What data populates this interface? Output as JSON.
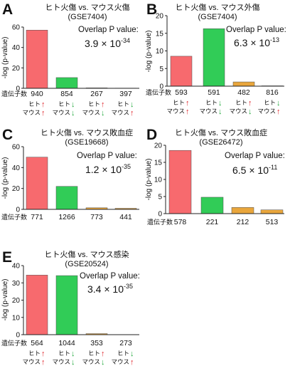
{
  "colors": {
    "bars": [
      "#f76a6e",
      "#31cc57",
      "#e9a63c",
      "#e9a63c"
    ],
    "bar_outline": "#4d4d4d",
    "axis": "#222222",
    "up_arrow": "#e0242a",
    "down_arrow": "#1fa83c"
  },
  "chart_data": [
    {
      "panel_label": "A",
      "type": "bar",
      "title": "ヒト火傷 vs. マウス火傷",
      "subtitle": "(GSE7404)",
      "ylabel": "-log (p-value)",
      "ylim": [
        0,
        60
      ],
      "yticks": [
        0,
        20,
        40,
        60
      ],
      "values": [
        57,
        10.5,
        0.4,
        0.2
      ],
      "xlabel": "遺伝子数",
      "categories": [
        "940",
        "854",
        "267",
        "397"
      ],
      "direction_labels": [
        {
          "human": "ヒト",
          "human_arrow": "↑",
          "mouse": "マウス",
          "mouse_arrow": "↑"
        },
        {
          "human": "ヒト",
          "human_arrow": "↓",
          "mouse": "マウス",
          "mouse_arrow": "↓"
        },
        {
          "human": "ヒト",
          "human_arrow": "↑",
          "mouse": "マウス",
          "mouse_arrow": "↓"
        },
        {
          "human": "ヒト",
          "human_arrow": "↓",
          "mouse": "マウス",
          "mouse_arrow": "↑"
        }
      ],
      "annotation": {
        "label": "Overlap P value:",
        "mantissa": "3.9 × 10",
        "exponent": "-34"
      },
      "grid": false
    },
    {
      "panel_label": "B",
      "type": "bar",
      "title": "ヒト火傷 vs. マウス外傷",
      "subtitle": "(GSE7404)",
      "ylabel": "-log (p-value)",
      "ylim": [
        0,
        20
      ],
      "yticks": [
        0,
        5,
        10,
        15,
        20
      ],
      "values": [
        8.5,
        16.3,
        1.2,
        0.1
      ],
      "xlabel": "遺伝子数",
      "categories": [
        "593",
        "591",
        "482",
        "816"
      ],
      "direction_labels": [
        {
          "human": "ヒト",
          "human_arrow": "↑",
          "mouse": "マウス",
          "mouse_arrow": "↑"
        },
        {
          "human": "ヒト",
          "human_arrow": "↓",
          "mouse": "マウス",
          "mouse_arrow": "↓"
        },
        {
          "human": "ヒト",
          "human_arrow": "↑",
          "mouse": "マウス",
          "mouse_arrow": "↓"
        },
        {
          "human": "ヒト",
          "human_arrow": "↓",
          "mouse": "マウス",
          "mouse_arrow": "↑"
        }
      ],
      "annotation": {
        "label": "Overlap P value:",
        "mantissa": "6.3 × 10",
        "exponent": "-13"
      },
      "grid": false
    },
    {
      "panel_label": "C",
      "type": "bar",
      "title": "ヒト火傷 vs. マウス敗血症",
      "subtitle": "(GSE19668)",
      "ylabel": "-log (p-value)",
      "ylim": [
        0,
        60
      ],
      "yticks": [
        0,
        20,
        40,
        60
      ],
      "values": [
        50,
        22,
        1.5,
        1.0
      ],
      "xlabel": "遺伝子数",
      "categories": [
        "771",
        "1266",
        "773",
        "441"
      ],
      "annotation": {
        "label": "Overlap P value:",
        "mantissa": "1.2 × 10",
        "exponent": "-35"
      },
      "grid": false
    },
    {
      "panel_label": "D",
      "type": "bar",
      "title": "ヒト火傷 vs. マウス敗血症",
      "subtitle": "(GSE26472)",
      "ylabel": "-log (p-value)",
      "ylim": [
        0,
        20
      ],
      "yticks": [
        0,
        5,
        10,
        15,
        20
      ],
      "values": [
        18.5,
        4.8,
        1.8,
        1.1
      ],
      "xlabel": "遺伝子数",
      "categories": [
        "578",
        "221",
        "212",
        "513"
      ],
      "annotation": {
        "label": "Overlap P value:",
        "mantissa": "6.5 × 10",
        "exponent": "-11"
      },
      "grid": false
    },
    {
      "panel_label": "E",
      "type": "bar",
      "title": "ヒト火傷 vs. マウス感染",
      "subtitle": "(GSE20524)",
      "ylabel": "-log (p-value)",
      "ylim": [
        0,
        40
      ],
      "yticks": [
        0,
        10,
        20,
        30,
        40
      ],
      "values": [
        34.5,
        34.2,
        0.6,
        0.1
      ],
      "xlabel": "遺伝子数",
      "categories": [
        "564",
        "1044",
        "353",
        "273"
      ],
      "direction_labels": [
        {
          "human": "ヒト",
          "human_arrow": "↑",
          "mouse": "マウス",
          "mouse_arrow": "↑"
        },
        {
          "human": "ヒト",
          "human_arrow": "↓",
          "mouse": "マウス",
          "mouse_arrow": "↓"
        },
        {
          "human": "ヒト",
          "human_arrow": "↑",
          "mouse": "マウス",
          "mouse_arrow": "↓"
        },
        {
          "human": "ヒト",
          "human_arrow": "↓",
          "mouse": "マウス",
          "mouse_arrow": "↑"
        }
      ],
      "annotation": {
        "label": "Overlap P value:",
        "mantissa": "3.4 × 10",
        "exponent": "-35"
      },
      "grid": false
    }
  ]
}
